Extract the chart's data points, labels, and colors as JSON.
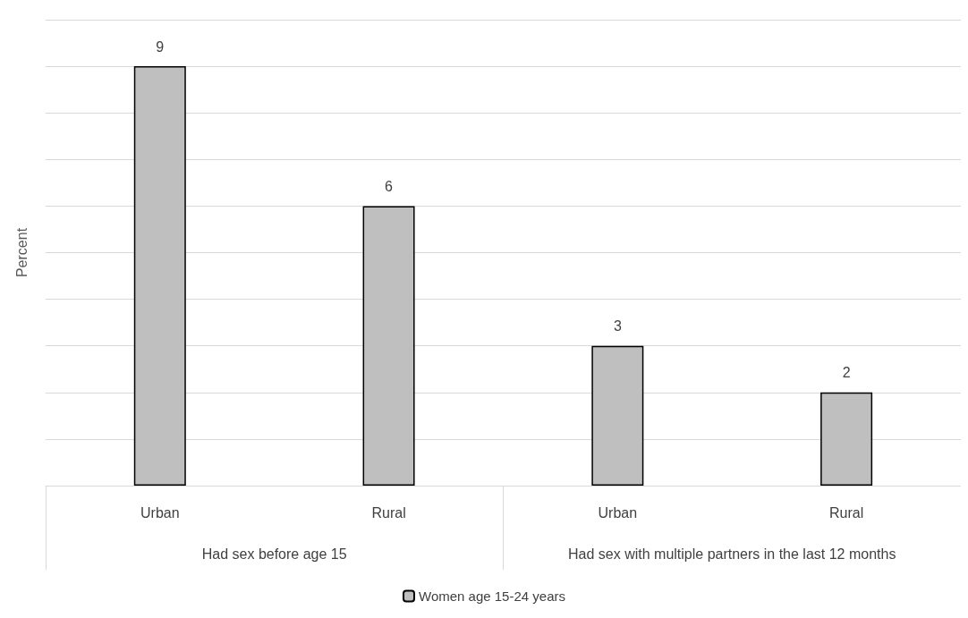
{
  "chart_data": {
    "type": "bar",
    "ylabel": "Percent",
    "categories": [
      "Urban",
      "Rural",
      "Urban",
      "Rural"
    ],
    "annotations": [
      "Had sex before age 15",
      "Had sex with multiple partners in the last 12 months"
    ],
    "series": [
      {
        "name": "Women age 15-24 years",
        "color": "#bfbfbf",
        "values": [
          9,
          6,
          3,
          2
        ]
      }
    ],
    "ylim": [
      0,
      10
    ],
    "yticks": [
      {
        "value": 0,
        "label": null
      },
      {
        "value": 1,
        "label": null
      },
      {
        "value": 2,
        "label": null
      },
      {
        "value": 3,
        "label": null
      },
      {
        "value": 4,
        "label": null
      },
      {
        "value": 5,
        "label": null
      },
      {
        "value": 6,
        "label": null
      },
      {
        "value": 7,
        "label": null
      },
      {
        "value": 8,
        "label": null
      },
      {
        "value": 9,
        "label": null
      },
      {
        "value": 10,
        "label": null
      }
    ],
    "grid": "y",
    "data_labels": true,
    "legend": "bottom"
  }
}
